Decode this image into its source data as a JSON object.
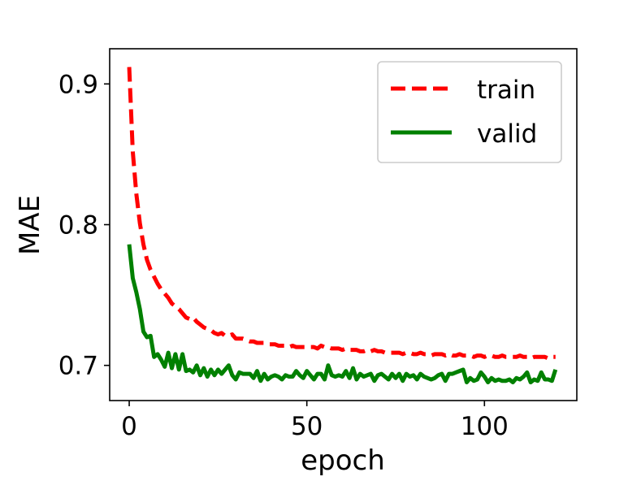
{
  "chart_data": {
    "type": "line",
    "xlabel": "epoch",
    "ylabel": "MAE",
    "xlim": [
      -5.5,
      126
    ],
    "ylim": [
      0.675,
      0.925
    ],
    "xticks": [
      0,
      50,
      100
    ],
    "xtick_labels": [
      "0",
      "50",
      "100"
    ],
    "yticks": [
      0.7,
      0.8,
      0.9
    ],
    "ytick_labels": [
      "0.7",
      "0.8",
      "0.9"
    ],
    "grid": false,
    "legend_position": "top-right",
    "series": [
      {
        "name": "train",
        "color": "#ff0000",
        "style": "dashed",
        "x": [
          0,
          1,
          2,
          3,
          4,
          5,
          6,
          7,
          8,
          9,
          10,
          11,
          12,
          13,
          14,
          15,
          16,
          17,
          18,
          19,
          20,
          21,
          22,
          23,
          24,
          25,
          26,
          27,
          28,
          29,
          30,
          31,
          32,
          33,
          34,
          35,
          36,
          37,
          38,
          39,
          40,
          41,
          42,
          43,
          44,
          45,
          46,
          47,
          48,
          49,
          50,
          51,
          52,
          53,
          54,
          55,
          56,
          57,
          58,
          59,
          60,
          61,
          62,
          63,
          64,
          65,
          66,
          67,
          68,
          69,
          70,
          71,
          72,
          73,
          74,
          75,
          76,
          77,
          78,
          79,
          80,
          81,
          82,
          83,
          84,
          85,
          86,
          87,
          88,
          89,
          90,
          91,
          92,
          93,
          94,
          95,
          96,
          97,
          98,
          99,
          100,
          101,
          102,
          103,
          104,
          105,
          106,
          107,
          108,
          109,
          110,
          111,
          112,
          113,
          114,
          115,
          116,
          117,
          118,
          119,
          120
        ],
        "values": [
          0.912,
          0.852,
          0.822,
          0.801,
          0.786,
          0.775,
          0.768,
          0.763,
          0.758,
          0.754,
          0.751,
          0.748,
          0.744,
          0.742,
          0.74,
          0.737,
          0.734,
          0.733,
          0.734,
          0.731,
          0.729,
          0.727,
          0.726,
          0.725,
          0.723,
          0.722,
          0.723,
          0.721,
          0.721,
          0.722,
          0.719,
          0.719,
          0.719,
          0.718,
          0.717,
          0.717,
          0.716,
          0.716,
          0.716,
          0.715,
          0.715,
          0.715,
          0.714,
          0.714,
          0.714,
          0.713,
          0.714,
          0.713,
          0.713,
          0.713,
          0.713,
          0.713,
          0.713,
          0.712,
          0.714,
          0.713,
          0.713,
          0.712,
          0.712,
          0.712,
          0.711,
          0.712,
          0.711,
          0.711,
          0.711,
          0.71,
          0.71,
          0.711,
          0.71,
          0.711,
          0.71,
          0.71,
          0.709,
          0.709,
          0.709,
          0.709,
          0.709,
          0.708,
          0.709,
          0.709,
          0.708,
          0.708,
          0.709,
          0.708,
          0.708,
          0.707,
          0.708,
          0.708,
          0.708,
          0.707,
          0.708,
          0.707,
          0.707,
          0.708,
          0.707,
          0.707,
          0.707,
          0.706,
          0.707,
          0.707,
          0.706,
          0.707,
          0.707,
          0.706,
          0.706,
          0.707,
          0.706,
          0.706,
          0.706,
          0.706,
          0.707,
          0.706,
          0.706,
          0.705,
          0.706,
          0.706,
          0.706,
          0.706,
          0.705,
          0.706,
          0.706
        ]
      },
      {
        "name": "valid",
        "color": "#008000",
        "style": "solid",
        "x": [
          0,
          1,
          2,
          3,
          4,
          5,
          6,
          7,
          8,
          9,
          10,
          11,
          12,
          13,
          14,
          15,
          16,
          17,
          18,
          19,
          20,
          21,
          22,
          23,
          24,
          25,
          26,
          27,
          28,
          29,
          30,
          31,
          32,
          33,
          34,
          35,
          36,
          37,
          38,
          39,
          40,
          41,
          42,
          43,
          44,
          45,
          46,
          47,
          48,
          49,
          50,
          51,
          52,
          53,
          54,
          55,
          56,
          57,
          58,
          59,
          60,
          61,
          62,
          63,
          64,
          65,
          66,
          67,
          68,
          69,
          70,
          71,
          72,
          73,
          74,
          75,
          76,
          77,
          78,
          79,
          80,
          81,
          82,
          83,
          84,
          85,
          86,
          87,
          88,
          89,
          90,
          91,
          92,
          93,
          94,
          95,
          96,
          97,
          98,
          99,
          100,
          101,
          102,
          103,
          104,
          105,
          106,
          107,
          108,
          109,
          110,
          111,
          112,
          113,
          114,
          115,
          116,
          117,
          118,
          119,
          120
        ],
        "values": [
          0.786,
          0.762,
          0.752,
          0.74,
          0.724,
          0.72,
          0.721,
          0.706,
          0.708,
          0.704,
          0.699,
          0.709,
          0.698,
          0.708,
          0.697,
          0.708,
          0.696,
          0.697,
          0.695,
          0.7,
          0.693,
          0.698,
          0.692,
          0.697,
          0.693,
          0.697,
          0.694,
          0.697,
          0.7,
          0.693,
          0.69,
          0.695,
          0.694,
          0.694,
          0.694,
          0.691,
          0.696,
          0.689,
          0.694,
          0.69,
          0.692,
          0.693,
          0.692,
          0.69,
          0.693,
          0.692,
          0.692,
          0.696,
          0.693,
          0.691,
          0.696,
          0.693,
          0.69,
          0.694,
          0.694,
          0.69,
          0.7,
          0.693,
          0.692,
          0.693,
          0.692,
          0.696,
          0.691,
          0.698,
          0.69,
          0.694,
          0.692,
          0.693,
          0.694,
          0.689,
          0.693,
          0.694,
          0.692,
          0.69,
          0.694,
          0.691,
          0.694,
          0.689,
          0.694,
          0.692,
          0.693,
          0.69,
          0.694,
          0.692,
          0.691,
          0.69,
          0.691,
          0.693,
          0.694,
          0.689,
          0.694,
          0.694,
          0.695,
          0.696,
          0.697,
          0.688,
          0.691,
          0.689,
          0.69,
          0.695,
          0.692,
          0.688,
          0.691,
          0.689,
          0.69,
          0.689,
          0.689,
          0.69,
          0.688,
          0.691,
          0.69,
          0.692,
          0.695,
          0.688,
          0.69,
          0.689,
          0.695,
          0.69,
          0.69,
          0.689,
          0.697
        ]
      }
    ]
  }
}
